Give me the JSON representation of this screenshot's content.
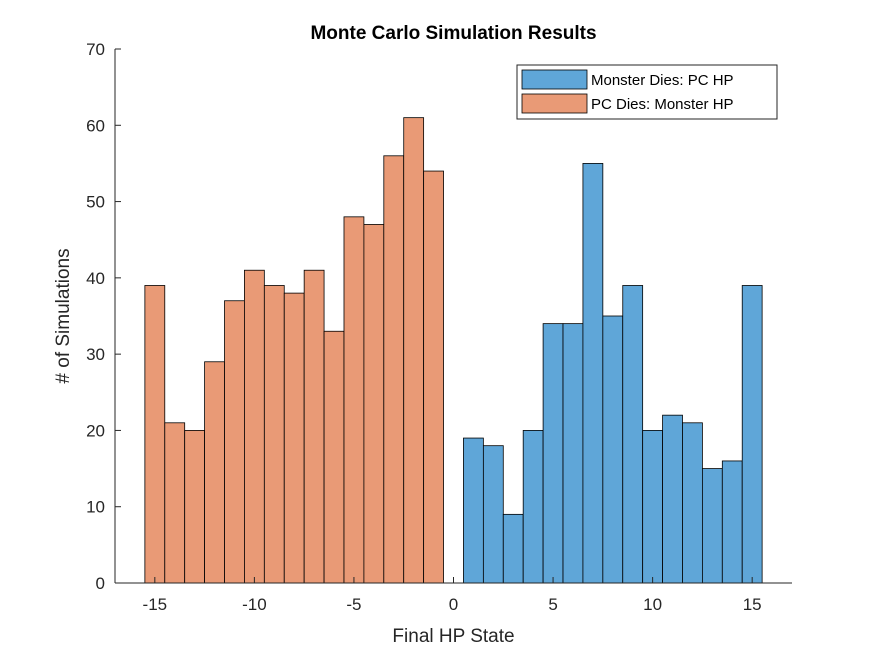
{
  "chart_data": {
    "type": "bar",
    "title": "Monte Carlo Simulation Results",
    "xlabel": "Final HP State",
    "ylabel": "# of Simulations",
    "xlim": [
      -17,
      17
    ],
    "ylim": [
      0,
      70
    ],
    "xticks": [
      -15,
      -10,
      -5,
      0,
      5,
      10,
      15
    ],
    "yticks": [
      0,
      10,
      20,
      30,
      40,
      50,
      60,
      70
    ],
    "grid": false,
    "legend_position": "top-right",
    "series": [
      {
        "name": "Monster Dies: PC HP",
        "color": "#5fa6d8",
        "x": [
          1,
          2,
          3,
          4,
          5,
          6,
          7,
          8,
          9,
          10,
          11,
          12,
          13,
          14,
          15
        ],
        "values": [
          19,
          18,
          9,
          20,
          34,
          34,
          55,
          35,
          39,
          20,
          22,
          21,
          15,
          16,
          39
        ]
      },
      {
        "name": "PC Dies: Monster HP",
        "color": "#e99a76",
        "x": [
          -15,
          -14,
          -13,
          -12,
          -11,
          -10,
          -9,
          -8,
          -7,
          -6,
          -5,
          -4,
          -3,
          -2,
          -1
        ],
        "values": [
          39,
          21,
          20,
          29,
          37,
          41,
          39,
          38,
          41,
          33,
          48,
          47,
          56,
          61,
          54
        ]
      }
    ]
  }
}
